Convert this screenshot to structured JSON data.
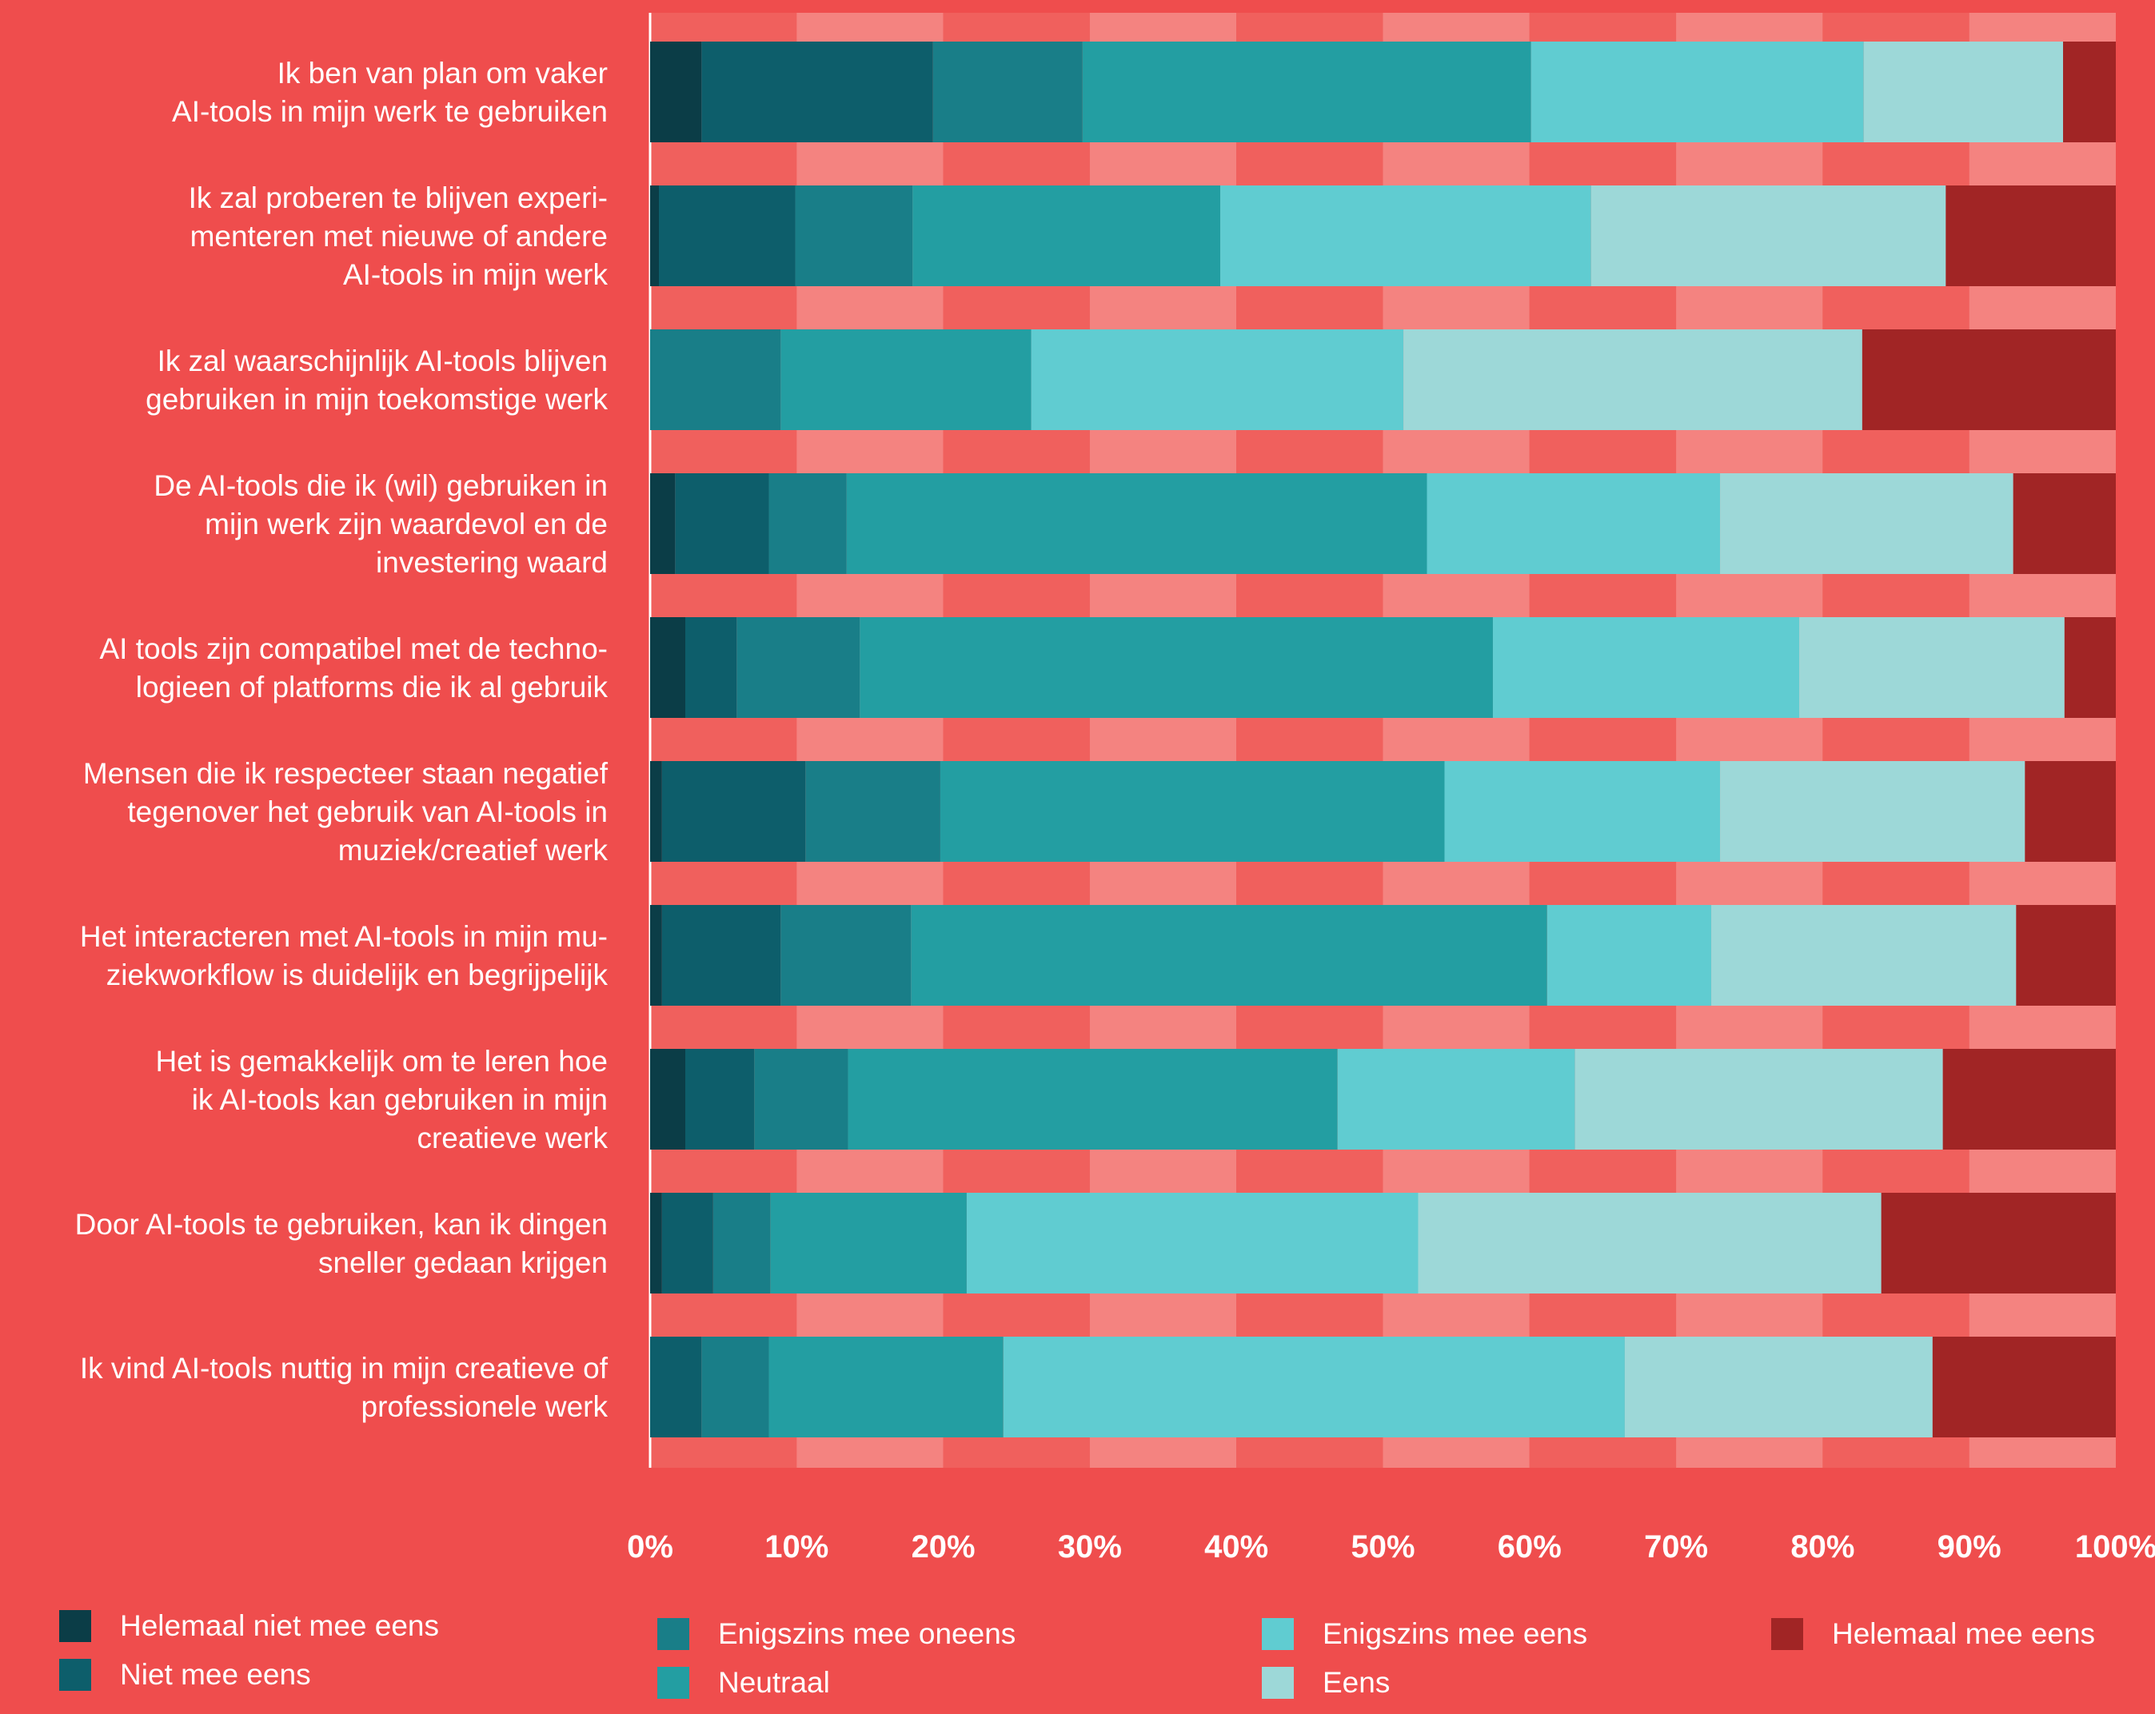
{
  "chart_data": {
    "type": "bar",
    "orientation": "horizontal",
    "stacked": true,
    "categories": [
      "Ik ben van plan om vaker\nAI-tools in mijn werk te gebruiken",
      "Ik zal proberen te blijven experi-\nmenteren met nieuwe of andere\nAI-tools in mijn werk",
      "Ik zal waarschijnlijk AI-tools blijven\ngebruiken in mijn toekomstige werk",
      "De AI-tools die ik (wil) gebruiken in\nmijn werk zijn waardevol en de\ninvestering waard",
      "AI tools zijn compatibel met de techno-\nlogieen of platforms die ik al gebruik",
      "Mensen die ik respecteer staan negatief\ntegenover het gebruik van AI-tools in\nmuziek/creatief werk",
      "Het interacteren met AI-tools in mijn mu-\nziekworkflow is duidelijk en begrijpelijk",
      "Het is gemakkelijk om te leren hoe\nik AI-tools kan gebruiken in mijn\ncreatieve werk",
      "Door AI-tools te gebruiken, kan ik dingen\nsneller gedaan krijgen",
      "Ik vind AI-tools nuttig in mijn creatieve of\nprofessionele werk"
    ],
    "series": [
      {
        "name": "Helemaal niet mee eens",
        "color": "#0b3d47",
        "values": [
          3.5,
          0.6,
          0,
          1.7,
          2.4,
          0.8,
          0.8,
          2.4,
          0.8,
          0
        ]
      },
      {
        "name": "Niet mee eens",
        "color": "#0d5e6b",
        "values": [
          15.8,
          9.3,
          0,
          6.4,
          3.5,
          9.8,
          8.1,
          4.7,
          3.5,
          3.5
        ]
      },
      {
        "name": "Enigszins mee oneens",
        "color": "#197e88",
        "values": [
          10.2,
          8.0,
          8.9,
          5.3,
          8.4,
          9.2,
          8.9,
          6.4,
          3.9,
          4.6
        ]
      },
      {
        "name": "Neutraal",
        "color": "#239ea2",
        "values": [
          30.6,
          21.0,
          17.1,
          39.6,
          43.2,
          34.4,
          43.4,
          33.4,
          13.4,
          16.0
        ]
      },
      {
        "name": "Enigszins mee eens",
        "color": "#60ccd1",
        "values": [
          22.7,
          25.3,
          25.4,
          20.0,
          20.9,
          18.8,
          11.2,
          16.2,
          30.8,
          42.4
        ]
      },
      {
        "name": "Eens",
        "color": "#9dd8d8",
        "values": [
          13.6,
          24.2,
          31.3,
          20.0,
          18.1,
          20.8,
          20.8,
          25.1,
          31.6,
          21.0
        ]
      },
      {
        "name": "Helemaal mee eens",
        "color": "#a12525",
        "values": [
          3.6,
          11.6,
          17.3,
          7.0,
          3.5,
          6.2,
          6.8,
          11.8,
          16.0,
          12.5
        ]
      }
    ],
    "xlim": [
      0,
      100
    ],
    "xticks": [
      "0%",
      "10%",
      "20%",
      "30%",
      "40%",
      "50%",
      "60%",
      "70%",
      "80%",
      "90%",
      "100%"
    ],
    "grid": "alternating vertical bands",
    "legend_position": "bottom",
    "colors": {
      "background": "#ef4d4d",
      "band_dark": "#f0605d",
      "band_light": "#f48380",
      "text": "#ffffff"
    }
  }
}
